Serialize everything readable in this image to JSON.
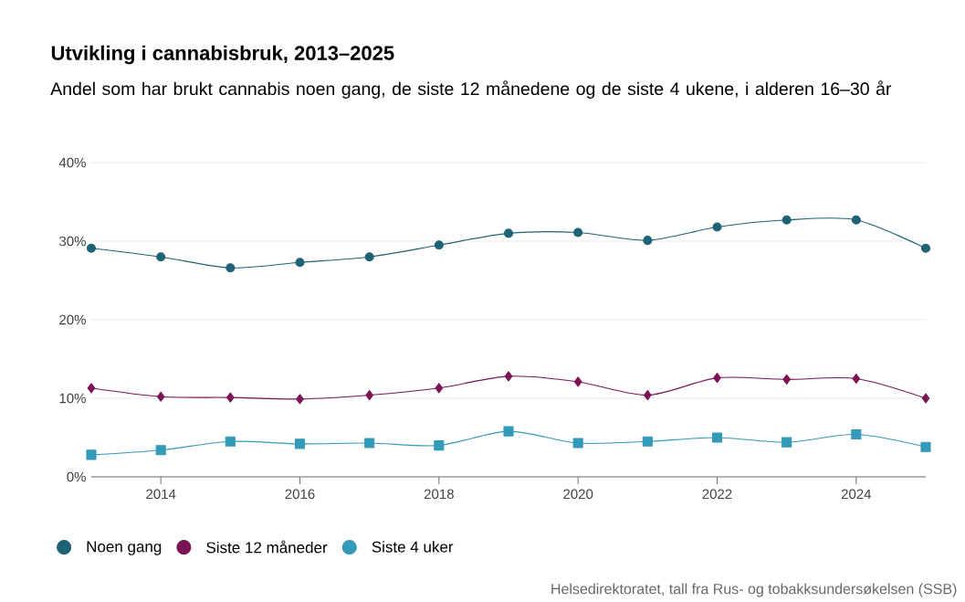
{
  "chart_data": {
    "type": "line",
    "title": "Utvikling i cannabisbruk, 2013–2025",
    "subtitle": "Andel som har brukt cannabis noen gang, de siste 12 månedene og de siste 4 ukene, i alderen 16–30 år",
    "x": [
      2013,
      2014,
      2015,
      2016,
      2017,
      2018,
      2019,
      2020,
      2021,
      2022,
      2023,
      2024,
      2025
    ],
    "series": [
      {
        "name": "Noen gang",
        "color": "#1e6276",
        "marker": "circle",
        "values": [
          29.1,
          28.0,
          26.6,
          27.3,
          28.0,
          29.5,
          31.0,
          31.1,
          30.1,
          31.8,
          32.7,
          32.7,
          29.1
        ]
      },
      {
        "name": "Siste 12 måneder",
        "color": "#7a1457",
        "marker": "diamond",
        "values": [
          11.3,
          10.2,
          10.1,
          9.9,
          10.4,
          11.3,
          12.8,
          12.1,
          10.4,
          12.6,
          12.4,
          12.5,
          10.0
        ]
      },
      {
        "name": "Siste 4 uker",
        "color": "#339ab8",
        "marker": "square",
        "values": [
          2.8,
          3.4,
          4.5,
          4.2,
          4.3,
          4.0,
          5.8,
          4.3,
          4.5,
          5.0,
          4.4,
          5.4,
          3.8
        ]
      }
    ],
    "xlim": [
      2013,
      2025
    ],
    "xticks": [
      2014,
      2016,
      2018,
      2020,
      2022,
      2024
    ],
    "ylim": [
      0,
      40
    ],
    "yticks": [
      {
        "value": 0,
        "label": "0%"
      },
      {
        "value": 10,
        "label": "10%"
      },
      {
        "value": 20,
        "label": "20%"
      },
      {
        "value": 30,
        "label": "30%"
      },
      {
        "value": 40,
        "label": "40%"
      }
    ],
    "grid": "y",
    "legend": "bottom",
    "line_style": "solid",
    "annotations": [
      "Helsedirektoratet, tall fra Rus- og tobakksundersøkelsen (SSB)"
    ]
  }
}
